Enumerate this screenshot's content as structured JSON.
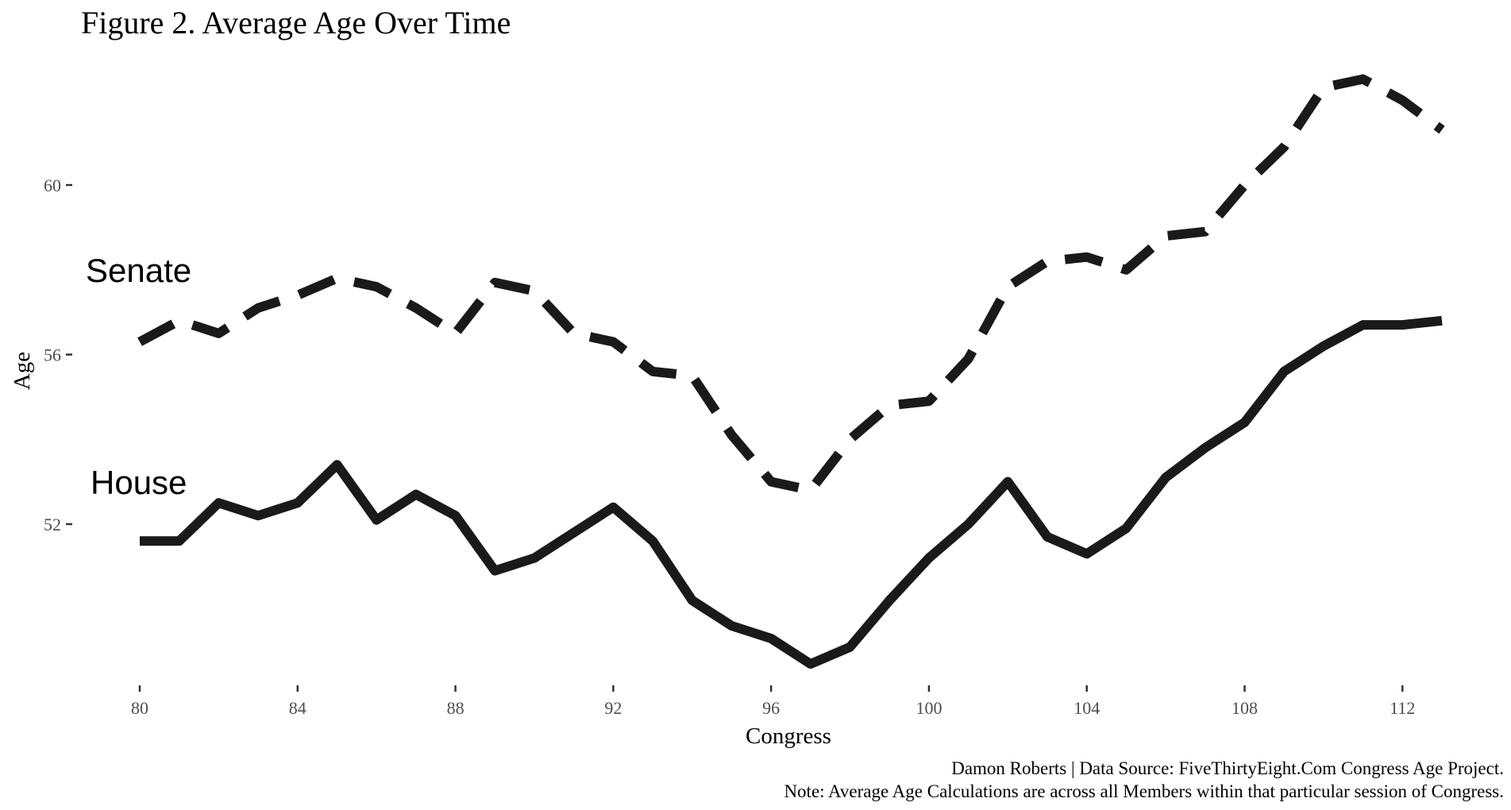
{
  "chart_data": {
    "type": "line",
    "title": "Figure 2. Average Age Over Time",
    "xlabel": "Congress",
    "ylabel": "Age",
    "x": [
      80,
      81,
      82,
      83,
      84,
      85,
      86,
      87,
      88,
      89,
      90,
      91,
      92,
      93,
      94,
      95,
      96,
      97,
      98,
      99,
      100,
      101,
      102,
      103,
      104,
      105,
      106,
      107,
      108,
      109,
      110,
      111,
      112,
      113
    ],
    "series": [
      {
        "name": "Senate",
        "line_style": "dashed",
        "values": [
          56.3,
          56.8,
          56.5,
          57.1,
          57.4,
          57.8,
          57.6,
          57.1,
          56.5,
          57.7,
          57.5,
          56.5,
          56.3,
          55.6,
          55.5,
          54.1,
          53.0,
          52.8,
          54.0,
          54.8,
          54.9,
          55.9,
          57.6,
          58.2,
          58.3,
          58.0,
          58.8,
          58.9,
          60.0,
          60.9,
          62.3,
          62.5,
          62.0,
          61.3
        ]
      },
      {
        "name": "House",
        "line_style": "solid",
        "values": [
          51.6,
          51.6,
          52.5,
          52.2,
          52.5,
          53.4,
          52.1,
          52.7,
          52.2,
          50.9,
          51.2,
          51.8,
          52.4,
          51.6,
          50.2,
          49.6,
          49.3,
          48.7,
          49.1,
          50.2,
          51.2,
          52.0,
          53.0,
          51.7,
          51.3,
          51.9,
          53.1,
          53.8,
          54.4,
          55.6,
          56.2,
          56.7,
          56.7,
          56.8
        ]
      }
    ],
    "xlim": [
      79.8,
      113
    ],
    "ylim": [
      48.3,
      63.0
    ],
    "x_ticks": [
      80,
      84,
      88,
      92,
      96,
      100,
      104,
      108,
      112
    ],
    "y_ticks": [
      52,
      56,
      60
    ],
    "grid": false,
    "legend": "direct-labels-left",
    "line_color": "#1a1a1a",
    "caption_lines": [
      "Damon Roberts | Data Source: FiveThirtyEight.Com Congress Age Project.",
      "Note: Average Age Calculations are across all Members within that particular session of Congress."
    ]
  }
}
